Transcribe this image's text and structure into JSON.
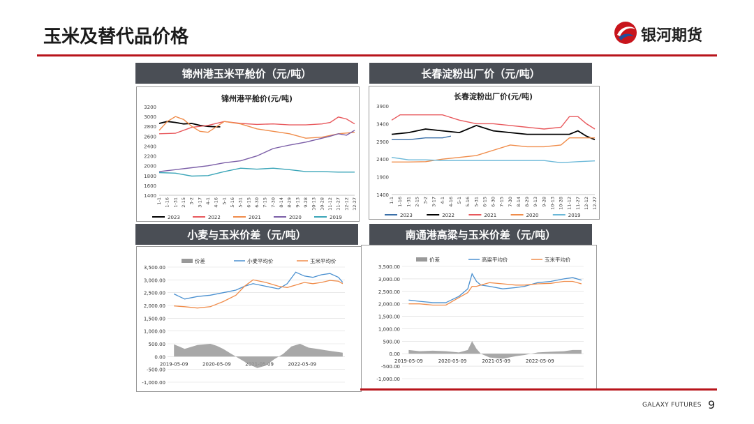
{
  "page": {
    "title": "玉米及替代品价格",
    "brand": "银河期货",
    "footer": "GALAXY FUTURES",
    "page_number": "9",
    "colors": {
      "accent": "#b8141b",
      "header_bg": "#4a4e55"
    }
  },
  "panels": [
    {
      "header": "锦州港玉米平舱价（元/吨）"
    },
    {
      "header": "长春淀粉出厂价（元/吨）"
    },
    {
      "header": "小麦与玉米价差（元/吨）"
    },
    {
      "header": "南通港高粱与玉米价差（元/吨）"
    }
  ],
  "chart_data": [
    {
      "type": "line",
      "title": "锦州港平舱价(元/吨)",
      "x_ticks": [
        "1-1",
        "1-16",
        "1-31",
        "2-15",
        "3-2",
        "3-17",
        "4-1",
        "4-16",
        "5-1",
        "5-16",
        "5-31",
        "6-15",
        "6-30",
        "7-15",
        "7-30",
        "8-14",
        "8-29",
        "9-13",
        "9-28",
        "10-13",
        "10-28",
        "11-12",
        "11-27",
        "12-12",
        "12-27"
      ],
      "ylim": [
        1400,
        3200
      ],
      "y_ticks": [
        1400,
        1600,
        1800,
        2000,
        2200,
        2400,
        2600,
        2800,
        3000,
        3200
      ],
      "series": [
        {
          "name": "2023",
          "color": "#000000",
          "x": [
            0,
            1,
            2,
            3,
            4,
            5,
            6,
            7,
            7.5
          ],
          "values": [
            2860,
            2900,
            2880,
            2850,
            2860,
            2820,
            2800,
            2790,
            2790
          ]
        },
        {
          "name": "2022",
          "color": "#e8585c",
          "x": [
            0,
            2,
            4,
            6,
            8,
            10,
            12,
            14,
            16,
            18,
            20,
            21,
            22,
            23,
            24
          ],
          "values": [
            2650,
            2660,
            2780,
            2820,
            2900,
            2860,
            2840,
            2850,
            2830,
            2830,
            2850,
            2880,
            2990,
            2950,
            2850
          ]
        },
        {
          "name": "2021",
          "color": "#f08c4a",
          "x": [
            0,
            1,
            2,
            3,
            4,
            5,
            6,
            8,
            10,
            12,
            14,
            16,
            18,
            20,
            22,
            24
          ],
          "values": [
            2720,
            2900,
            3000,
            2940,
            2800,
            2700,
            2680,
            2900,
            2850,
            2750,
            2700,
            2650,
            2560,
            2580,
            2650,
            2680
          ]
        },
        {
          "name": "2020",
          "color": "#7b5ea7",
          "x": [
            0,
            2,
            4,
            6,
            8,
            10,
            12,
            14,
            16,
            18,
            20,
            21,
            22,
            23,
            24
          ],
          "values": [
            1880,
            1920,
            1960,
            2000,
            2060,
            2100,
            2200,
            2350,
            2420,
            2480,
            2560,
            2600,
            2650,
            2620,
            2720
          ]
        },
        {
          "name": "2019",
          "color": "#3aa5b8",
          "x": [
            0,
            2,
            4,
            6,
            8,
            10,
            12,
            14,
            16,
            18,
            20,
            22,
            24
          ],
          "values": [
            1860,
            1850,
            1790,
            1800,
            1880,
            1950,
            1930,
            1950,
            1920,
            1880,
            1880,
            1870,
            1870
          ]
        }
      ],
      "legend": "bottom"
    },
    {
      "type": "line",
      "title": "长春淀粉出厂价(元/吨)",
      "x_ticks": [
        "1-1",
        "1-16",
        "1-31",
        "2-15",
        "3-2",
        "3-17",
        "4-1",
        "4-16",
        "5-1",
        "5-16",
        "5-31",
        "6-15",
        "6-30",
        "7-15",
        "7-30",
        "8-14",
        "8-29",
        "9-13",
        "9-28",
        "10-13",
        "10-28",
        "11-12",
        "11-27",
        "12-12",
        "12-27"
      ],
      "ylim": [
        1400,
        3900
      ],
      "y_ticks": [
        1400,
        1900,
        2400,
        2900,
        3400,
        3900
      ],
      "series": [
        {
          "name": "2023",
          "color": "#3a6fa8",
          "x": [
            0,
            2,
            4,
            6,
            7
          ],
          "values": [
            2950,
            2950,
            3000,
            3000,
            3050
          ]
        },
        {
          "name": "2022",
          "color": "#000000",
          "x": [
            0,
            2,
            4,
            6,
            8,
            10,
            12,
            14,
            16,
            18,
            20,
            21,
            22,
            23,
            24
          ],
          "values": [
            3100,
            3150,
            3250,
            3200,
            3150,
            3350,
            3200,
            3150,
            3100,
            3100,
            3100,
            3100,
            3200,
            3050,
            2950
          ]
        },
        {
          "name": "2021",
          "color": "#e8585c",
          "x": [
            0,
            1,
            3,
            6,
            8,
            10,
            12,
            14,
            16,
            18,
            20,
            21,
            22,
            23,
            24
          ],
          "values": [
            3500,
            3650,
            3650,
            3650,
            3500,
            3400,
            3400,
            3350,
            3300,
            3250,
            3300,
            3600,
            3600,
            3400,
            3250
          ]
        },
        {
          "name": "2020",
          "color": "#f08c4a",
          "x": [
            0,
            2,
            4,
            6,
            8,
            10,
            12,
            14,
            16,
            18,
            20,
            21,
            22,
            23,
            24
          ],
          "values": [
            2320,
            2320,
            2330,
            2400,
            2450,
            2500,
            2650,
            2800,
            2750,
            2750,
            2800,
            3000,
            3000,
            3000,
            3000
          ]
        },
        {
          "name": "2019",
          "color": "#6bb8d8",
          "x": [
            0,
            2,
            4,
            6,
            8,
            10,
            12,
            14,
            16,
            18,
            20,
            22,
            24
          ],
          "values": [
            2450,
            2380,
            2380,
            2360,
            2360,
            2360,
            2360,
            2360,
            2360,
            2360,
            2300,
            2330,
            2350
          ]
        }
      ],
      "legend": "bottom"
    },
    {
      "type": "line",
      "title": "",
      "x_ticks": [
        "2019-05-09",
        "2020-05-09",
        "2021-05-09",
        "2022-05-09"
      ],
      "ylim": [
        -1000,
        3500
      ],
      "y_ticks": [
        "-1,000.00",
        "-500.00",
        "0.00",
        "500.00",
        "1,000.00",
        "1,500.00",
        "2,000.00",
        "2,500.00",
        "3,000.00",
        "3,500.00"
      ],
      "series": [
        {
          "name": "价差",
          "color": "#999999",
          "kind": "bar",
          "x": [
            2019.35,
            2019.6,
            2019.9,
            2020.2,
            2020.35,
            2020.5,
            2020.7,
            2020.9,
            2021.1,
            2021.3,
            2021.5,
            2021.7,
            2021.9,
            2022.1,
            2022.3,
            2022.5,
            2022.7,
            2022.9,
            2023.1,
            2023.3
          ],
          "values": [
            480,
            300,
            450,
            500,
            420,
            300,
            100,
            -100,
            -300,
            -450,
            -350,
            -100,
            100,
            400,
            500,
            350,
            300,
            250,
            200,
            150
          ]
        },
        {
          "name": "小麦平均价",
          "color": "#4a90d0",
          "x": [
            2019.35,
            2019.6,
            2019.9,
            2020.2,
            2020.5,
            2020.8,
            2021.0,
            2021.2,
            2021.5,
            2021.8,
            2022.0,
            2022.2,
            2022.4,
            2022.6,
            2022.8,
            2023.0,
            2023.2,
            2023.3
          ],
          "values": [
            2450,
            2250,
            2350,
            2400,
            2500,
            2600,
            2750,
            2850,
            2750,
            2650,
            2850,
            3300,
            3150,
            3100,
            3200,
            3250,
            3100,
            2900
          ]
        },
        {
          "name": "玉米平均价",
          "color": "#f08c4a",
          "x": [
            2019.35,
            2019.6,
            2019.9,
            2020.2,
            2020.5,
            2020.8,
            2021.0,
            2021.2,
            2021.5,
            2021.8,
            2022.0,
            2022.2,
            2022.4,
            2022.6,
            2022.8,
            2023.0,
            2023.2,
            2023.3
          ],
          "values": [
            1980,
            1950,
            1900,
            1950,
            2150,
            2400,
            2750,
            3000,
            2900,
            2750,
            2700,
            2800,
            2900,
            2850,
            2900,
            2980,
            2950,
            2850
          ]
        }
      ],
      "legend": "top"
    },
    {
      "type": "line",
      "title": "",
      "x_ticks": [
        "2019-05-09",
        "2020-05-09",
        "2021-05-09",
        "2022-05-09"
      ],
      "ylim": [
        -1000,
        3500
      ],
      "y_ticks": [
        "-1,000.00",
        "-500.00",
        "0.00",
        "500.00",
        "1,000.00",
        "1,500.00",
        "2,000.00",
        "2,500.00",
        "3,000.00",
        "3,500.00"
      ],
      "series": [
        {
          "name": "价差",
          "color": "#999999",
          "kind": "bar",
          "x": [
            2019.35,
            2019.6,
            2019.9,
            2020.2,
            2020.5,
            2020.7,
            2020.8,
            2020.9,
            2021.0,
            2021.2,
            2021.5,
            2021.8,
            2022.0,
            2022.3,
            2022.6,
            2022.9,
            2023.1,
            2023.3
          ],
          "values": [
            150,
            100,
            120,
            100,
            50,
            150,
            500,
            200,
            0,
            -150,
            -200,
            -100,
            -50,
            50,
            80,
            100,
            150,
            150
          ]
        },
        {
          "name": "高粱平均价",
          "color": "#4a90d0",
          "x": [
            2019.35,
            2019.6,
            2019.9,
            2020.2,
            2020.5,
            2020.7,
            2020.8,
            2020.9,
            2021.0,
            2021.2,
            2021.5,
            2021.8,
            2022.0,
            2022.3,
            2022.6,
            2022.9,
            2023.1,
            2023.3
          ],
          "values": [
            2150,
            2100,
            2050,
            2050,
            2300,
            2600,
            3200,
            2900,
            2750,
            2700,
            2600,
            2650,
            2700,
            2850,
            2900,
            3000,
            3050,
            2950
          ]
        },
        {
          "name": "玉米平均价",
          "color": "#f08c4a",
          "x": [
            2019.35,
            2019.6,
            2019.9,
            2020.2,
            2020.5,
            2020.7,
            2020.8,
            2020.9,
            2021.0,
            2021.2,
            2021.5,
            2021.8,
            2022.0,
            2022.3,
            2022.6,
            2022.9,
            2023.1,
            2023.3
          ],
          "values": [
            2000,
            2000,
            1950,
            1950,
            2250,
            2450,
            2700,
            2700,
            2750,
            2850,
            2800,
            2750,
            2750,
            2800,
            2820,
            2900,
            2900,
            2800
          ]
        }
      ],
      "legend": "top"
    }
  ]
}
